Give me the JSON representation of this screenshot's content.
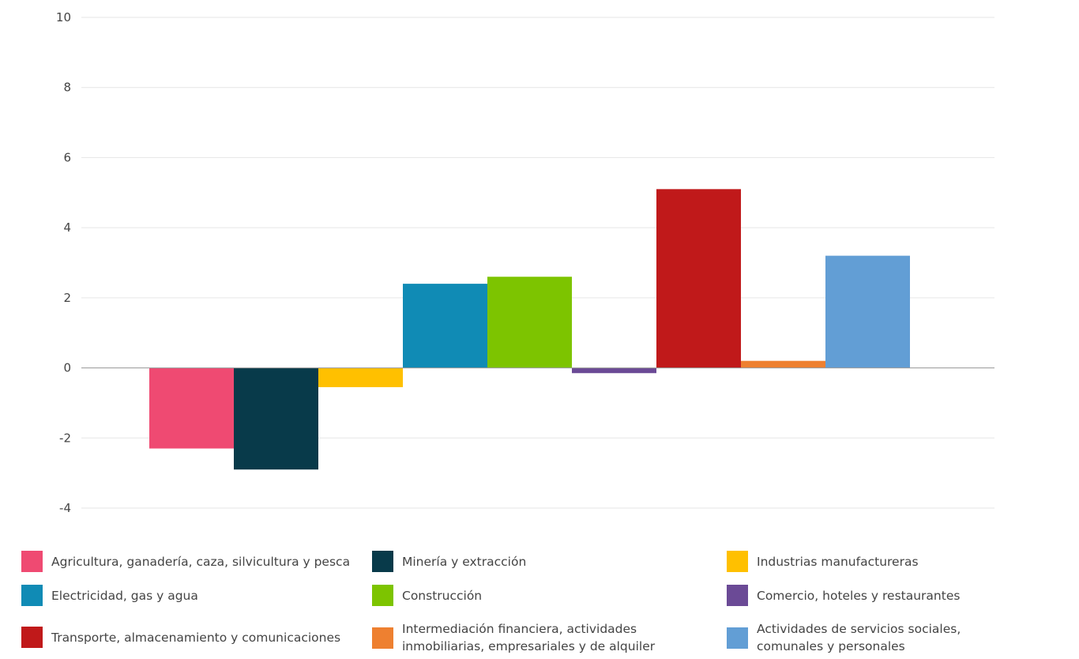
{
  "chart_data": {
    "type": "bar",
    "title": "",
    "xlabel": "",
    "ylabel": "",
    "ylim": [
      -4,
      10
    ],
    "yticks": [
      -4,
      -2,
      0,
      2,
      4,
      6,
      8,
      10
    ],
    "grid": true,
    "legend_position": "bottom",
    "series": [
      {
        "name": "Agricultura, ganadería, caza, silvicultura y pesca",
        "value": -2.3,
        "color": "#EF4A72"
      },
      {
        "name": "Minería y extracción",
        "value": -2.9,
        "color": "#083A4A"
      },
      {
        "name": "Industrias manufactureras",
        "value": -0.55,
        "color": "#FFC000"
      },
      {
        "name": "Electricidad, gas y agua",
        "value": 2.4,
        "color": "#108BB5"
      },
      {
        "name": "Construcción",
        "value": 2.6,
        "color": "#7DC400"
      },
      {
        "name": "Comercio, hoteles y restaurantes",
        "value": -0.15,
        "color": "#6B4A96"
      },
      {
        "name": "Transporte, almacenamiento y comunicaciones",
        "value": 5.1,
        "color": "#C0191A"
      },
      {
        "name": "Intermediación financiera, actividades\ninmobiliarias, empresariales y de alquiler",
        "value": 0.2,
        "color": "#EE8030"
      },
      {
        "name": "Actividades de servicios sociales,\ncomunales y personales",
        "value": 3.2,
        "color": "#629ED5"
      }
    ],
    "legend_order": [
      0,
      3,
      6,
      1,
      4,
      7,
      2,
      5,
      8
    ]
  }
}
